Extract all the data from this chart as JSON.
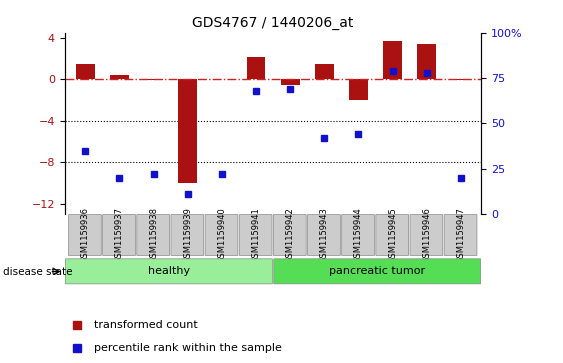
{
  "title": "GDS4767 / 1440206_at",
  "samples": [
    "GSM1159936",
    "GSM1159937",
    "GSM1159938",
    "GSM1159939",
    "GSM1159940",
    "GSM1159941",
    "GSM1159942",
    "GSM1159943",
    "GSM1159944",
    "GSM1159945",
    "GSM1159946",
    "GSM1159947"
  ],
  "transformed_count": [
    1.5,
    0.4,
    -0.1,
    -10.0,
    0.05,
    2.2,
    -0.5,
    1.5,
    -2.0,
    3.7,
    3.4,
    -0.1
  ],
  "percentile_rank": [
    35,
    20,
    22,
    11,
    22,
    68,
    69,
    42,
    44,
    79,
    78,
    20
  ],
  "ylim_left": [
    -13,
    4.5
  ],
  "ylim_right": [
    0,
    100
  ],
  "yticks_left": [
    4,
    0,
    -4,
    -8,
    -12
  ],
  "yticks_right": [
    0,
    25,
    50,
    75,
    100
  ],
  "bar_color": "#aa1111",
  "dot_color": "#1111cc",
  "hline_color": "#cc2222",
  "healthy_color": "#99ee99",
  "tumor_color": "#55dd55",
  "healthy_samples": 6,
  "tumor_samples": 6,
  "disease_label_healthy": "healthy",
  "disease_label_tumor": "pancreatic tumor",
  "legend_bar": "transformed count",
  "legend_dot": "percentile rank within the sample",
  "disease_state_label": "disease state",
  "bar_width": 0.55
}
